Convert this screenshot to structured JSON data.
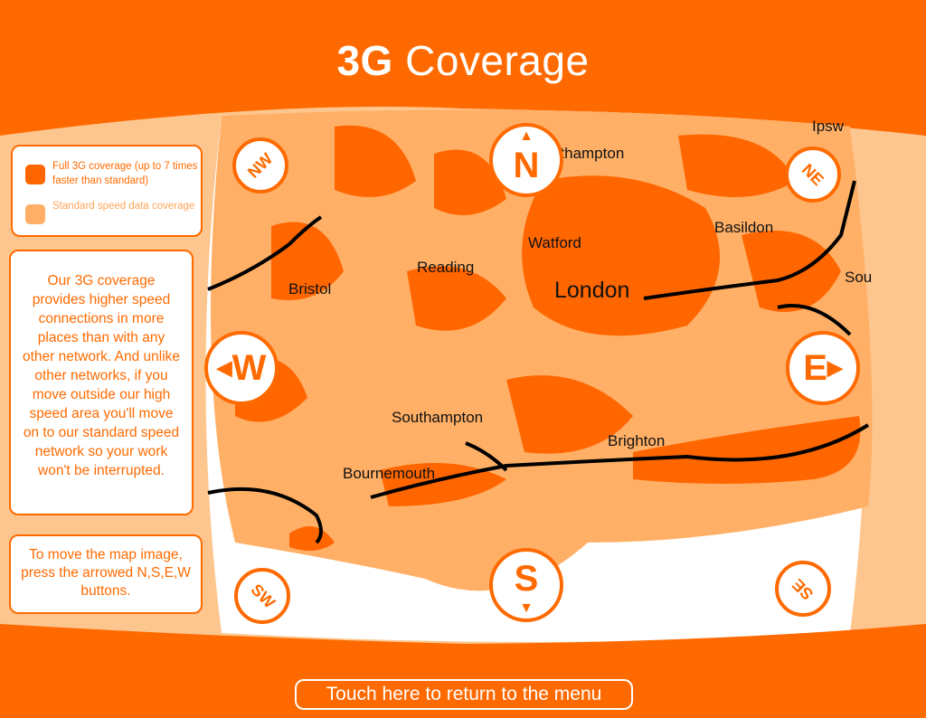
{
  "header": {
    "title_bold": "3G",
    "title_rest": "Coverage"
  },
  "colors": {
    "brand": "#ff6a00",
    "full_3g": "#ff6600",
    "standard": "#ffb066",
    "panel_bg": "#fdc68f"
  },
  "legend": {
    "items": [
      {
        "label": "Full 3G coverage (up to 7 times faster than standard)",
        "color": "#ff6600"
      },
      {
        "label": "Standard speed data coverage",
        "color": "#ffb066"
      }
    ]
  },
  "info_text": "Our 3G coverage provides higher speed connections in more places than with any other network. And unlike other networks, if you move outside our high speed area you'll move on to our standard speed network so your work won't be interrupted.",
  "help_text": "To move the map image, press the arrowed N,S,E,W buttons.",
  "nav": {
    "n": "N",
    "s": "S",
    "e": "E",
    "w": "W",
    "ne": "NE",
    "nw": "NW",
    "se": "SE",
    "sw": "SW"
  },
  "map_labels": [
    "Northampton",
    "Ipsw",
    "Basildon",
    "Watford",
    "Reading",
    "London",
    "Bristol",
    "Sou",
    "Southampton",
    "Brighton",
    "Bournemouth"
  ],
  "menu_button": "Touch here to return to the menu"
}
